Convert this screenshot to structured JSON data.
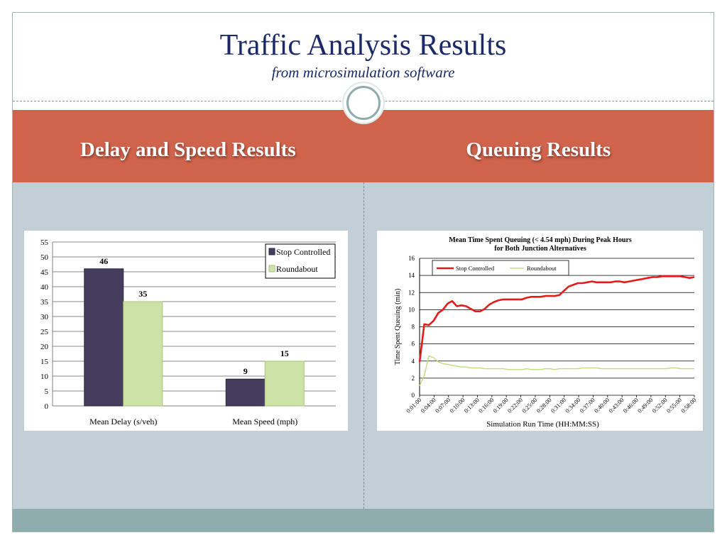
{
  "slide": {
    "title": "Traffic Analysis Results",
    "subtitle": "from microsimulation software",
    "left_heading": "Delay and Speed Results",
    "right_heading": "Queuing Results"
  },
  "colors": {
    "title": "#1b2a66",
    "band": "#d0634b",
    "body_bg": "#c3cfd7",
    "footer": "#8fadad",
    "stop_controlled_bar": "#463c5e",
    "roundabout_bar": "#cde2a6",
    "stop_controlled_line": "#e31b1b",
    "roundabout_line": "#bedd7a"
  },
  "chart_data": [
    {
      "type": "bar",
      "categories": [
        "Mean Delay (s/veh)",
        "Mean Speed (mph)"
      ],
      "series": [
        {
          "name": "Stop Controlled",
          "values": [
            46,
            9
          ]
        },
        {
          "name": "Roundabout",
          "values": [
            35,
            15
          ]
        }
      ],
      "ylim": [
        0,
        55
      ],
      "yticks": [
        0,
        5,
        10,
        15,
        20,
        25,
        30,
        35,
        40,
        45,
        50,
        55
      ],
      "grid": true,
      "legend": "top-right"
    },
    {
      "type": "line",
      "title": "Mean Time Spent Queuing (< 4.54 mph) During Peak Hours for Both Junction Alternatives",
      "xlabel": "Simulation Run Time (HH:MM:SS)",
      "ylabel": "Time Spent Queuing (min)",
      "ylim": [
        0,
        16
      ],
      "yticks": [
        0,
        2,
        4,
        6,
        8,
        10,
        12,
        14,
        16
      ],
      "x_tick_labels": [
        "0:01:00",
        "0:04:00",
        "0:07:00",
        "0:10:00",
        "0:13:00",
        "0:16:00",
        "0:19:00",
        "0:22:00",
        "0:25:00",
        "0:28:00",
        "0:31:00",
        "0:34:00",
        "0:37:00",
        "0:40:00",
        "0:43:00",
        "0:46:00",
        "0:49:00",
        "0:52:00",
        "0:55:00",
        "0:58:00"
      ],
      "x": [
        1,
        2,
        3,
        4,
        5,
        6,
        7,
        8,
        9,
        10,
        11,
        12,
        13,
        14,
        15,
        16,
        17,
        18,
        19,
        20,
        21,
        22,
        23,
        24,
        25,
        26,
        27,
        28,
        29,
        30,
        31,
        32,
        33,
        34,
        35,
        36,
        37,
        38,
        39,
        40,
        41,
        42,
        43,
        44,
        45,
        46,
        47,
        48,
        49,
        50,
        51,
        52,
        53,
        54,
        55,
        56,
        57,
        58,
        59,
        60
      ],
      "series": [
        {
          "name": "Stop Controlled",
          "values": [
            3.9,
            8.3,
            8.2,
            8.7,
            9.6,
            10.0,
            10.7,
            11.0,
            10.4,
            10.5,
            10.4,
            10.1,
            9.8,
            9.8,
            10.1,
            10.6,
            10.9,
            11.1,
            11.2,
            11.2,
            11.2,
            11.2,
            11.2,
            11.4,
            11.5,
            11.5,
            11.5,
            11.6,
            11.6,
            11.6,
            11.7,
            12.2,
            12.7,
            12.9,
            13.1,
            13.1,
            13.2,
            13.3,
            13.2,
            13.2,
            13.2,
            13.2,
            13.3,
            13.3,
            13.2,
            13.3,
            13.4,
            13.5,
            13.6,
            13.7,
            13.8,
            13.8,
            13.9,
            13.9,
            13.9,
            13.9,
            13.9,
            13.8,
            13.7,
            13.8
          ]
        },
        {
          "name": "Roundabout",
          "values": [
            1.1,
            2.3,
            4.6,
            4.4,
            3.9,
            3.7,
            3.6,
            3.5,
            3.4,
            3.3,
            3.3,
            3.2,
            3.2,
            3.2,
            3.1,
            3.1,
            3.1,
            3.1,
            3.1,
            3.0,
            3.0,
            3.0,
            3.0,
            3.1,
            3.0,
            3.0,
            3.0,
            3.1,
            3.1,
            3.0,
            3.1,
            3.1,
            3.1,
            3.1,
            3.1,
            3.2,
            3.2,
            3.2,
            3.2,
            3.1,
            3.1,
            3.1,
            3.1,
            3.1,
            3.1,
            3.1,
            3.1,
            3.1,
            3.1,
            3.1,
            3.1,
            3.1,
            3.1,
            3.1,
            3.2,
            3.2,
            3.1,
            3.1,
            3.1,
            3.1
          ]
        }
      ],
      "grid": true,
      "legend": "top-left"
    }
  ]
}
